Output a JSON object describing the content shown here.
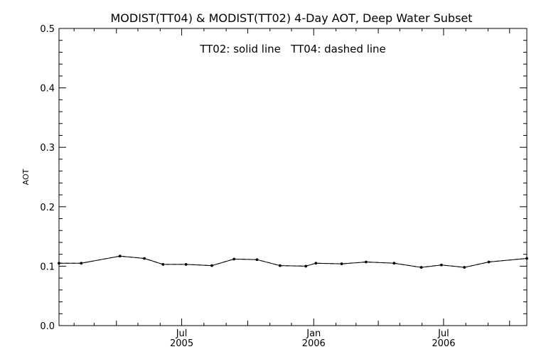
{
  "chart_data": {
    "type": "line",
    "title": "MODIST(TT04) & MODIST(TT02) 4-Day AOT, Deep Water Subset",
    "annotation": "TT02: solid line   TT04: dashed line",
    "ylabel": "AOT",
    "xlabel": "",
    "ylim": [
      0,
      0.5
    ],
    "yticks": [
      "0.0",
      "0.1",
      "0.2",
      "0.3",
      "0.4",
      "0.5"
    ],
    "xlim": [
      "2005-01-11",
      "2006-10-25"
    ],
    "xticks": [
      {
        "month": "Jul",
        "year": "2005",
        "date": "2005-07-01"
      },
      {
        "month": "Jan",
        "year": "2006",
        "date": "2006-01-01"
      },
      {
        "month": "Jul",
        "year": "2006",
        "date": "2006-07-01"
      }
    ],
    "grid": false,
    "series": [
      {
        "name": "TT02",
        "style": "solid",
        "color": "#000000",
        "x": [
          "2005-01-11",
          "2005-02-11",
          "2005-04-06",
          "2005-05-10",
          "2005-06-05",
          "2005-07-07",
          "2005-08-12",
          "2005-09-12",
          "2005-10-14",
          "2005-11-15",
          "2005-12-21",
          "2006-01-04",
          "2006-02-09",
          "2006-03-15",
          "2006-04-23",
          "2006-05-31",
          "2006-06-28",
          "2006-07-30",
          "2006-09-02",
          "2006-10-25"
        ],
        "y": [
          0.105,
          0.105,
          0.117,
          0.113,
          0.103,
          0.103,
          0.101,
          0.112,
          0.111,
          0.101,
          0.1,
          0.105,
          0.104,
          0.107,
          0.105,
          0.098,
          0.102,
          0.098,
          0.107,
          0.113
        ]
      },
      {
        "name": "TT04",
        "style": "dashed",
        "color": "#000000",
        "x": [
          "2005-01-11",
          "2005-02-11",
          "2005-04-06",
          "2005-05-10",
          "2005-06-05",
          "2005-07-07",
          "2005-08-12",
          "2005-09-12",
          "2005-10-14",
          "2005-11-15",
          "2005-12-21",
          "2006-01-04",
          "2006-02-09",
          "2006-03-15",
          "2006-04-23",
          "2006-05-31",
          "2006-06-28",
          "2006-07-30",
          "2006-09-02",
          "2006-10-25"
        ],
        "y": [
          0.105,
          0.105,
          0.117,
          0.113,
          0.103,
          0.103,
          0.101,
          0.112,
          0.111,
          0.101,
          0.1,
          0.105,
          0.104,
          0.107,
          0.105,
          0.098,
          0.102,
          0.098,
          0.107,
          0.113
        ]
      }
    ]
  }
}
